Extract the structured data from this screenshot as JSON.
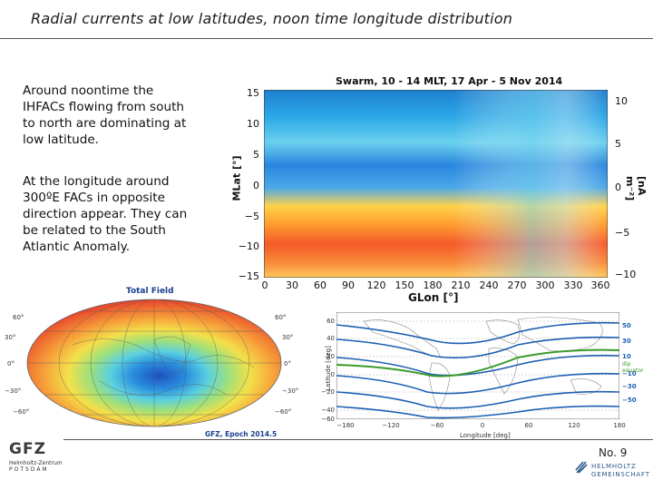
{
  "header": {
    "title": "Radial currents at low latitudes, noon time longitude distribution"
  },
  "text": {
    "para1": "Around noontime the IHFACs flowing from south to north are dominating at low latitude.",
    "para2": "At the longitude around 300ºE FACs in opposite direction appear. They can be related to the South Atlantic Anomaly."
  },
  "heatmap": {
    "title": "Swarm, 10 - 14 MLT, 17 Apr - 5 Nov 2014",
    "xlabel": "GLon [°]",
    "ylabel": "MLat [°]",
    "colorbar_label": "[nA m⁻²]",
    "x_ticks": [
      "0",
      "30",
      "60",
      "90",
      "120",
      "150",
      "180",
      "210",
      "240",
      "270",
      "300",
      "330",
      "360"
    ],
    "y_ticks": [
      "15",
      "10",
      "5",
      "0",
      "−5",
      "−10",
      "−15"
    ],
    "colorbar_ticks": [
      "10",
      "5",
      "0",
      "−5",
      "−10"
    ]
  },
  "total_field": {
    "title": "Total Field",
    "caption": "GFZ, Epoch 2014.5",
    "left_ticks": [
      "60°",
      "30°",
      "0°",
      "−30°",
      "−60°"
    ],
    "right_ticks": [
      "60°",
      "30°",
      "0°",
      "−30°",
      "−60°"
    ]
  },
  "dip_map": {
    "xlabel": "Longitude [deg]",
    "ylabel": "Latitude [deg]",
    "x_ticks": [
      "−180",
      "−120",
      "−60",
      "0",
      "60",
      "120",
      "180"
    ],
    "y_ticks": [
      "60",
      "40",
      "20",
      "0",
      "−20",
      "−40",
      "−60"
    ],
    "right_labels": [
      "50",
      "30",
      "10",
      "dip equator",
      "−10",
      "−30",
      "−50"
    ]
  },
  "footer": {
    "page_number": "No. 9",
    "gfz_logo": "GFZ",
    "gfz_sub1": "Helmholtz-Zentrum",
    "gfz_sub2": "POTSDAM",
    "helmholtz_line1": "HELMHOLTZ",
    "helmholtz_line2": "GEMEINSCHAFT"
  },
  "colors": {
    "title_rule": "#555555",
    "accent_blue": "#1b3f8f",
    "contour_blue": "#1d5fb3",
    "dip_green": "#3a9a2a"
  }
}
